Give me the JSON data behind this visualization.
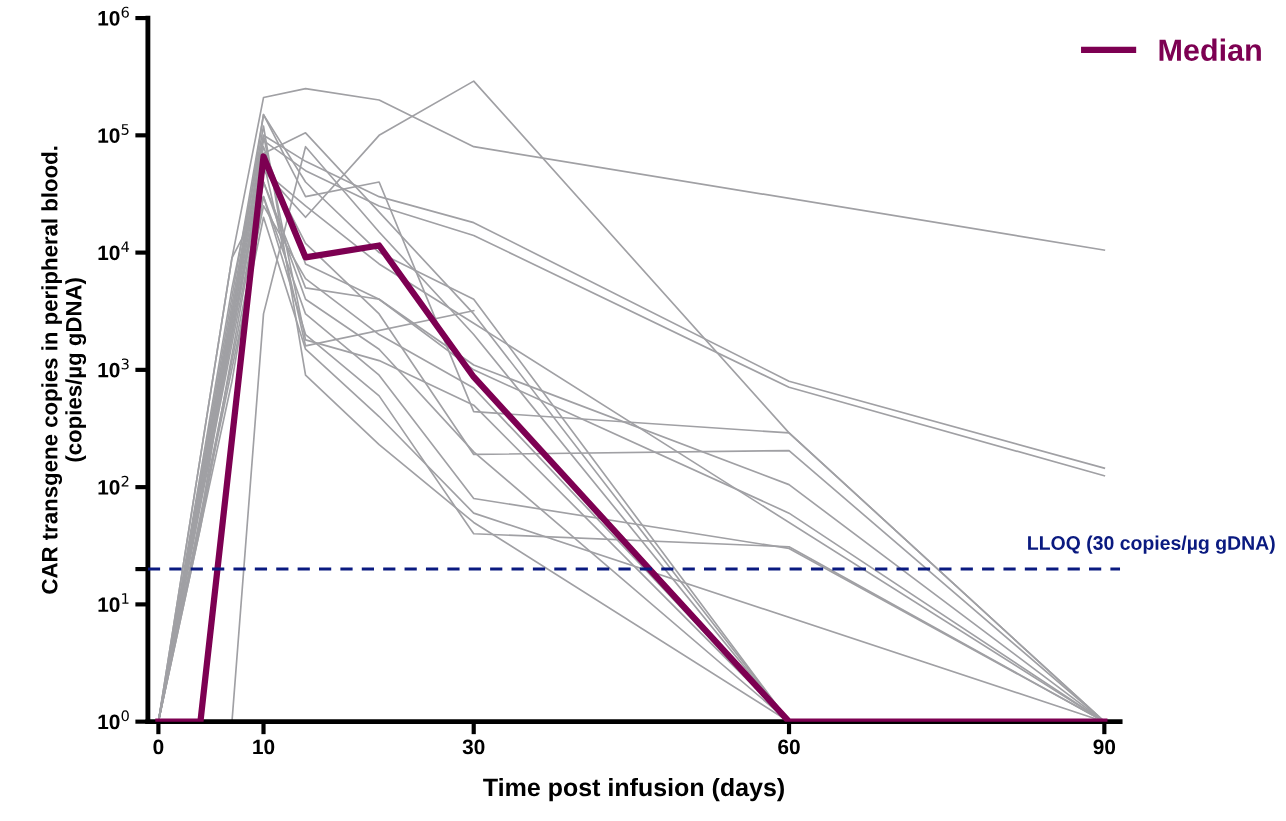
{
  "chart_data": {
    "type": "line",
    "xlabel": "Time post infusion (days)",
    "ylabel": "CAR transgene copies in peripheral blood.\n(copies/µg gDNA)",
    "log": "y",
    "xlim": [
      -1,
      91.5
    ],
    "ylim": [
      1,
      1000000
    ],
    "xticks": [
      0,
      10,
      30,
      60,
      90
    ],
    "yticks": [
      {
        "value": 1,
        "label": "10$^{0}$"
      },
      {
        "value": 10,
        "label": "10$^{1}$"
      },
      {
        "value": 20,
        "label": null
      },
      {
        "value": 100,
        "label": "10$^{2}$"
      },
      {
        "value": 1000,
        "label": "10$^{3}$"
      },
      {
        "value": 10000,
        "label": "10$^{4}$"
      },
      {
        "value": 100000,
        "label": "10$^{5}$"
      },
      {
        "value": 1000000,
        "label": "10$^{6}$"
      }
    ],
    "grid": false,
    "legend": "top right",
    "marker": "none",
    "line_style": "solid",
    "ref_lines": [
      {
        "axis": "y",
        "value": 20,
        "label": "LLOQ (30 copies/µg gDNA)",
        "color": "#0a1a80",
        "line_style": "dashed"
      }
    ],
    "series": [
      {
        "color": "#a0a0a4",
        "x": [
          0,
          7,
          10,
          14,
          21,
          30,
          90
        ],
        "values": [
          1,
          9000,
          210000,
          250000,
          200000,
          80000,
          10500
        ]
      },
      {
        "color": "#a0a0a4",
        "x": [
          0,
          10,
          14,
          21,
          30,
          60,
          90
        ],
        "values": [
          1,
          50000,
          20000,
          100000,
          290000,
          290,
          1
        ]
      },
      {
        "color": "#a0a0a4",
        "x": [
          0,
          7,
          10,
          14,
          21,
          30,
          60,
          90
        ],
        "values": [
          1,
          5000,
          100000,
          60000,
          30000,
          18000,
          800,
          145
        ]
      },
      {
        "color": "#a0a0a4",
        "x": [
          0,
          7,
          10,
          14,
          21,
          30,
          60,
          90
        ],
        "values": [
          1,
          3000,
          90000,
          50000,
          25000,
          14000,
          710,
          125
        ]
      },
      {
        "color": "#a0a0a4",
        "x": [
          0,
          4,
          10,
          14,
          21,
          30,
          60,
          90
        ],
        "values": [
          1,
          50,
          150000,
          30000,
          40000,
          440,
          290,
          1
        ]
      },
      {
        "color": "#a0a0a4",
        "x": [
          0,
          7,
          10,
          14,
          21,
          30,
          60,
          90
        ],
        "values": [
          1,
          2000,
          60000,
          12000,
          3000,
          190,
          205,
          1
        ]
      },
      {
        "color": "#a0a0a4",
        "x": [
          0,
          10,
          14,
          21,
          30,
          60,
          90
        ],
        "values": [
          1,
          40000,
          5000,
          4000,
          1100,
          105,
          1
        ]
      },
      {
        "color": "#a0a0a4",
        "x": [
          0,
          7,
          10,
          14,
          21,
          30,
          60,
          90
        ],
        "values": [
          1,
          800,
          30000,
          2000,
          600,
          40,
          31,
          1
        ]
      },
      {
        "color": "#a0a0a4",
        "x": [
          0,
          10,
          14,
          21,
          30,
          90
        ],
        "values": [
          1,
          20000,
          1500,
          400,
          60,
          1
        ]
      },
      {
        "color": "#a0a0a4",
        "x": [
          0,
          10,
          14,
          30,
          60
        ],
        "values": [
          1,
          70000,
          105000,
          3000,
          1
        ]
      },
      {
        "color": "#a0a0a4",
        "x": [
          0,
          7,
          10,
          14,
          21,
          30,
          60
        ],
        "values": [
          1,
          1,
          3000,
          80000,
          15000,
          2000,
          1
        ]
      },
      {
        "color": "#a0a0a4",
        "x": [
          0,
          10,
          14,
          21,
          30,
          60
        ],
        "values": [
          1,
          120000,
          900,
          230,
          50,
          1
        ]
      },
      {
        "color": "#a0a0a4",
        "x": [
          0,
          10,
          14,
          21,
          30,
          60
        ],
        "values": [
          1,
          100000,
          1800,
          1200,
          500,
          1
        ]
      },
      {
        "color": "#a0a0a4",
        "x": [
          0,
          10,
          14,
          30
        ],
        "values": [
          1,
          60000,
          1600,
          3200
        ]
      },
      {
        "color": "#a0a0a4",
        "x": [
          0,
          10,
          14,
          21,
          30,
          60,
          90
        ],
        "values": [
          1,
          80000,
          8000,
          4000,
          1000,
          60,
          1
        ]
      },
      {
        "color": "#a0a0a4",
        "x": [
          0,
          4,
          10,
          14,
          21,
          30,
          60
        ],
        "values": [
          1,
          45,
          40000,
          4000,
          1500,
          200,
          1
        ]
      },
      {
        "color": "#a0a0a4",
        "x": [
          0,
          10,
          14,
          21,
          30,
          60
        ],
        "values": [
          1,
          150000,
          40000,
          10000,
          4000,
          1
        ]
      },
      {
        "color": "#a0a0a4",
        "x": [
          0,
          10,
          14,
          21,
          30,
          90
        ],
        "values": [
          1,
          50000,
          25000,
          8000,
          2500,
          1
        ]
      },
      {
        "color": "#a0a0a4",
        "x": [
          0,
          7,
          10,
          14,
          21,
          30,
          60,
          90
        ],
        "values": [
          1,
          9000,
          30000,
          3000,
          900,
          80,
          30,
          1
        ]
      },
      {
        "color": "#a0a0a4",
        "x": [
          0,
          10,
          14,
          21,
          30,
          60
        ],
        "values": [
          1,
          25000,
          6000,
          2000,
          700,
          1
        ]
      },
      {
        "name": "Median",
        "color": "#7d0052",
        "x": [
          0,
          4,
          10,
          14,
          21,
          30,
          60,
          90
        ],
        "values": [
          1,
          1,
          66000,
          9100,
          11500,
          870,
          1,
          1
        ]
      }
    ]
  }
}
